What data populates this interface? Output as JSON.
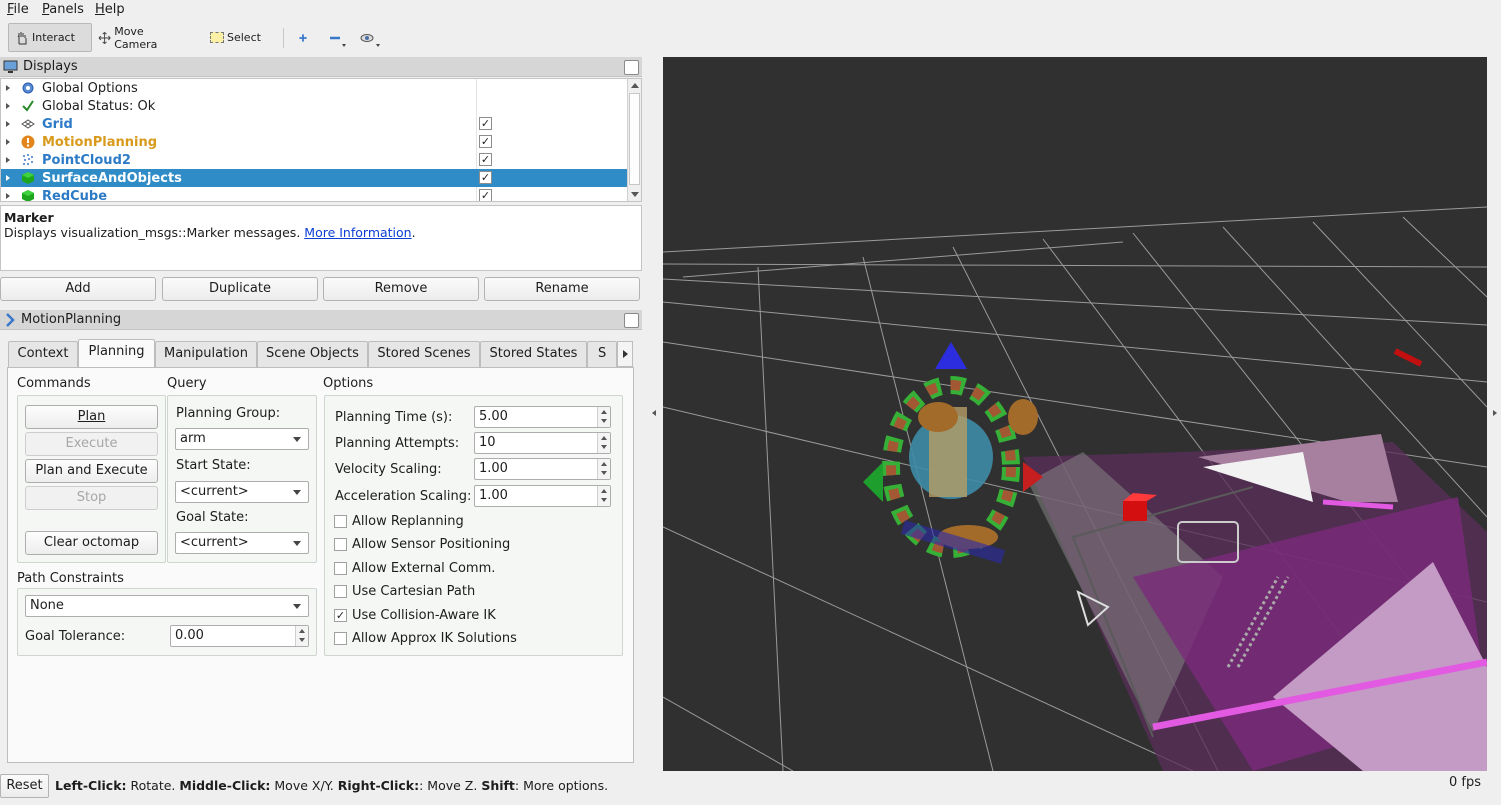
{
  "menu": [
    "File",
    "Panels",
    "Help"
  ],
  "toolbar": {
    "interact": "Interact",
    "move_camera": "Move Camera",
    "select": "Select"
  },
  "displays_panel": {
    "title": "Displays",
    "items": [
      {
        "label": "Global Options",
        "icon": "gear-icon",
        "bold": false,
        "color": "#1d1d1d",
        "checked": null
      },
      {
        "label": "Global Status: Ok",
        "icon": "checkmark-icon",
        "bold": false,
        "color": "#1d1d1d",
        "checked": null
      },
      {
        "label": "Grid",
        "icon": "grid-icon",
        "bold": true,
        "color": "#2d7bc6",
        "checked": true
      },
      {
        "label": "MotionPlanning",
        "icon": "warning-icon",
        "bold": true,
        "color": "#d99a1c",
        "checked": true
      },
      {
        "label": "PointCloud2",
        "icon": "pointcloud-icon",
        "bold": true,
        "color": "#2d7bc6",
        "checked": true
      },
      {
        "label": "SurfaceAndObjects",
        "icon": "cube-icon",
        "bold": true,
        "color": "#ffffff",
        "checked": true,
        "selected": true
      },
      {
        "label": "RedCube",
        "icon": "cube-icon",
        "bold": true,
        "color": "#2d7bc6",
        "checked": true
      }
    ]
  },
  "description": {
    "title": "Marker",
    "text": "Displays visualization_msgs::Marker messages.",
    "link": "More Information",
    "trailing": "."
  },
  "panel_buttons": {
    "add": "Add",
    "duplicate": "Duplicate",
    "remove": "Remove",
    "rename": "Rename"
  },
  "motion_planning": {
    "title": "MotionPlanning",
    "tabs": [
      "Context",
      "Planning",
      "Manipulation",
      "Scene Objects",
      "Stored Scenes",
      "Stored States",
      "S"
    ],
    "active_tab": "Planning",
    "commands": {
      "heading": "Commands",
      "plan": "Plan",
      "execute": "Execute",
      "plan_and_execute": "Plan and Execute",
      "stop": "Stop",
      "clear_octomap": "Clear octomap"
    },
    "query": {
      "heading": "Query",
      "planning_group_label": "Planning Group:",
      "planning_group": "arm",
      "start_state_label": "Start State:",
      "start_state": "<current>",
      "goal_state_label": "Goal State:",
      "goal_state": "<current>"
    },
    "path_constraints": {
      "heading": "Path Constraints",
      "value": "None",
      "goal_tolerance_label": "Goal Tolerance:",
      "goal_tolerance": "0.00"
    },
    "options": {
      "heading": "Options",
      "planning_time_label": "Planning Time (s):",
      "planning_time": "5.00",
      "planning_attempts_label": "Planning Attempts:",
      "planning_attempts": "10",
      "velocity_scaling_label": "Velocity Scaling:",
      "velocity_scaling": "1.00",
      "acceleration_scaling_label": "Acceleration Scaling:",
      "acceleration_scaling": "1.00",
      "checkboxes": [
        {
          "label": "Allow Replanning",
          "checked": false
        },
        {
          "label": "Allow Sensor Positioning",
          "checked": false
        },
        {
          "label": "Allow External Comm.",
          "checked": false
        },
        {
          "label": "Use Cartesian Path",
          "checked": false
        },
        {
          "label": "Use Collision-Aware IK",
          "checked": true
        },
        {
          "label": "Allow Approx IK Solutions",
          "checked": false
        }
      ]
    }
  },
  "status_bar": {
    "reset": "Reset",
    "hint_left_click_key": "Left-Click:",
    "hint_left_click": " Rotate. ",
    "hint_middle_click_key": "Middle-Click:",
    "hint_middle_click": " Move X/Y. ",
    "hint_right_click_key": "Right-Click:",
    "hint_right_click": ": Move Z. ",
    "hint_shift_key": "Shift",
    "hint_shift": ": More options.",
    "fps": "0 fps"
  },
  "colors": {
    "selection": "#308cc6",
    "viewport_bg": "#303030",
    "link": "#0b3fd6"
  }
}
